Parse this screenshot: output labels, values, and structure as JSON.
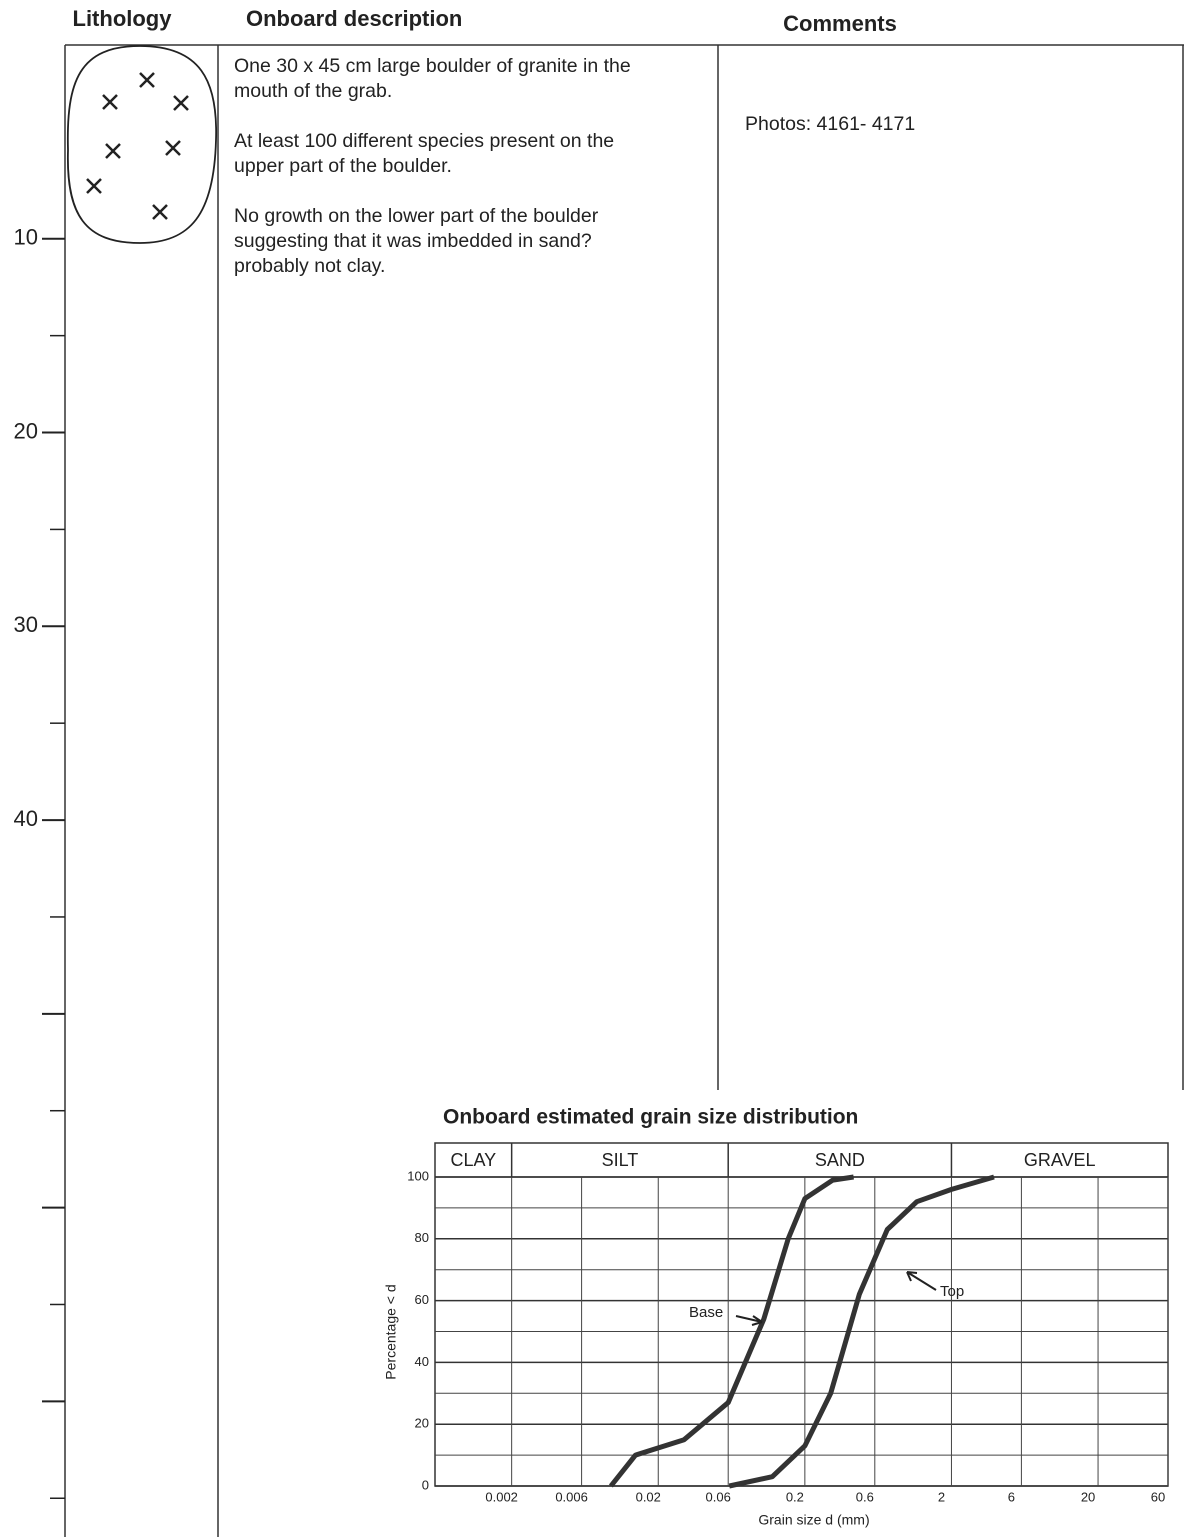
{
  "header": {
    "lithology": "Lithology",
    "description": "Onboard description",
    "comments": "Comments"
  },
  "depth_axis": {
    "lim": [
      0,
      77
    ],
    "labeled_ticks": [
      10,
      20,
      30,
      40
    ],
    "major_ticks": [
      50,
      60,
      70
    ],
    "minor_ticks": [
      15,
      25,
      35,
      45,
      55,
      65,
      75
    ]
  },
  "description": [
    [
      "One 30 x 45 cm large boulder of granite in the",
      "mouth of the grab."
    ],
    [
      "At least 100 different species present on the",
      "upper part of the boulder."
    ],
    [
      "No growth on the lower part of the boulder",
      "suggesting that it was imbedded in sand?",
      "probably not clay."
    ]
  ],
  "comments": "Photos: 4161- 4171",
  "chart_data": {
    "type": "line",
    "title": "Onboard estimated grain size distribution",
    "x_label": "Grain size d (mm)",
    "y_label": "Percentage < d",
    "log_x": true,
    "xlim": [
      0.0006,
      60
    ],
    "ylim": [
      0,
      100
    ],
    "xticks": [
      0.002,
      0.006,
      0.02,
      0.06,
      0.2,
      0.6,
      2,
      6,
      20,
      60
    ],
    "yticks": [
      0,
      20,
      40,
      60,
      80,
      100
    ],
    "y_minor_ticks": [
      10,
      30,
      50,
      70,
      90
    ],
    "grid": true,
    "fractions": [
      "CLAY",
      "SILT",
      "SAND",
      "GRAVEL"
    ],
    "fraction_boundaries": [
      0.002,
      0.06,
      2
    ],
    "series": [
      {
        "name": "Base",
        "color": "#333333",
        "x": [
          0.0095,
          0.014,
          0.03,
          0.06,
          0.105,
          0.154,
          0.2,
          0.31,
          0.43
        ],
        "values": [
          0,
          10,
          15,
          27,
          54,
          80,
          93,
          99,
          100
        ]
      },
      {
        "name": "Top",
        "color": "#333333",
        "x": [
          0.061,
          0.12,
          0.2,
          0.3,
          0.47,
          0.73,
          1.16,
          2,
          3.9
        ],
        "values": [
          0,
          3,
          13,
          30,
          62,
          83,
          92,
          96,
          100
        ]
      }
    ]
  }
}
